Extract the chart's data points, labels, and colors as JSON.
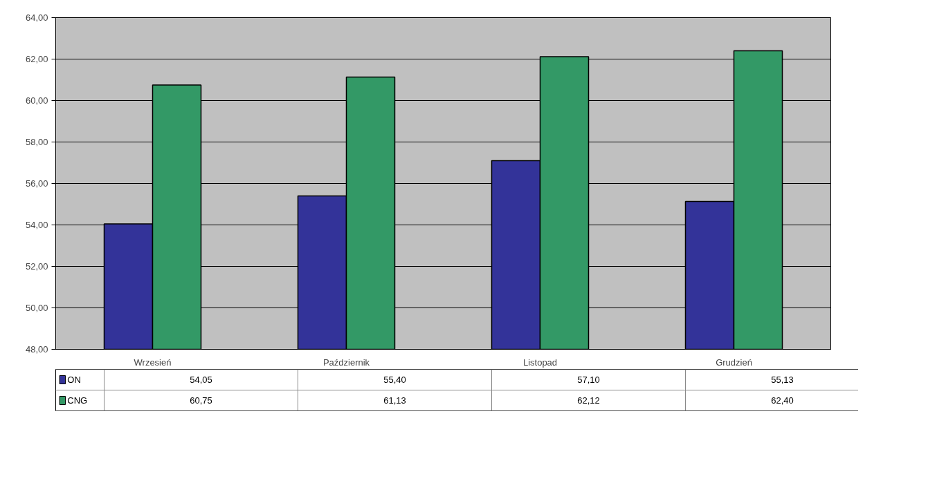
{
  "chart_data": {
    "type": "bar",
    "categories": [
      "Wrzesień",
      "Październik",
      "Listopad",
      "Grudzień"
    ],
    "series": [
      {
        "name": "ON",
        "color": "#333399",
        "values": [
          54.05,
          55.4,
          57.1,
          55.13
        ],
        "value_labels": [
          "54,05",
          "55,40",
          "57,10",
          "55,13"
        ]
      },
      {
        "name": "CNG",
        "color": "#339966",
        "values": [
          60.75,
          61.13,
          62.12,
          62.4
        ],
        "value_labels": [
          "60,75",
          "61,13",
          "62,12",
          "62,40"
        ]
      }
    ],
    "ylim": [
      48,
      64
    ],
    "yticks": [
      {
        "value": 48,
        "label": "48,00"
      },
      {
        "value": 50,
        "label": "50,00"
      },
      {
        "value": 52,
        "label": "52,00"
      },
      {
        "value": 54,
        "label": "54,00"
      },
      {
        "value": 56,
        "label": "56,00"
      },
      {
        "value": 58,
        "label": "58,00"
      },
      {
        "value": 60,
        "label": "60,00"
      },
      {
        "value": 62,
        "label": "62,00"
      },
      {
        "value": 64,
        "label": "64,00"
      }
    ],
    "grid": "y",
    "legend": "bottom"
  }
}
